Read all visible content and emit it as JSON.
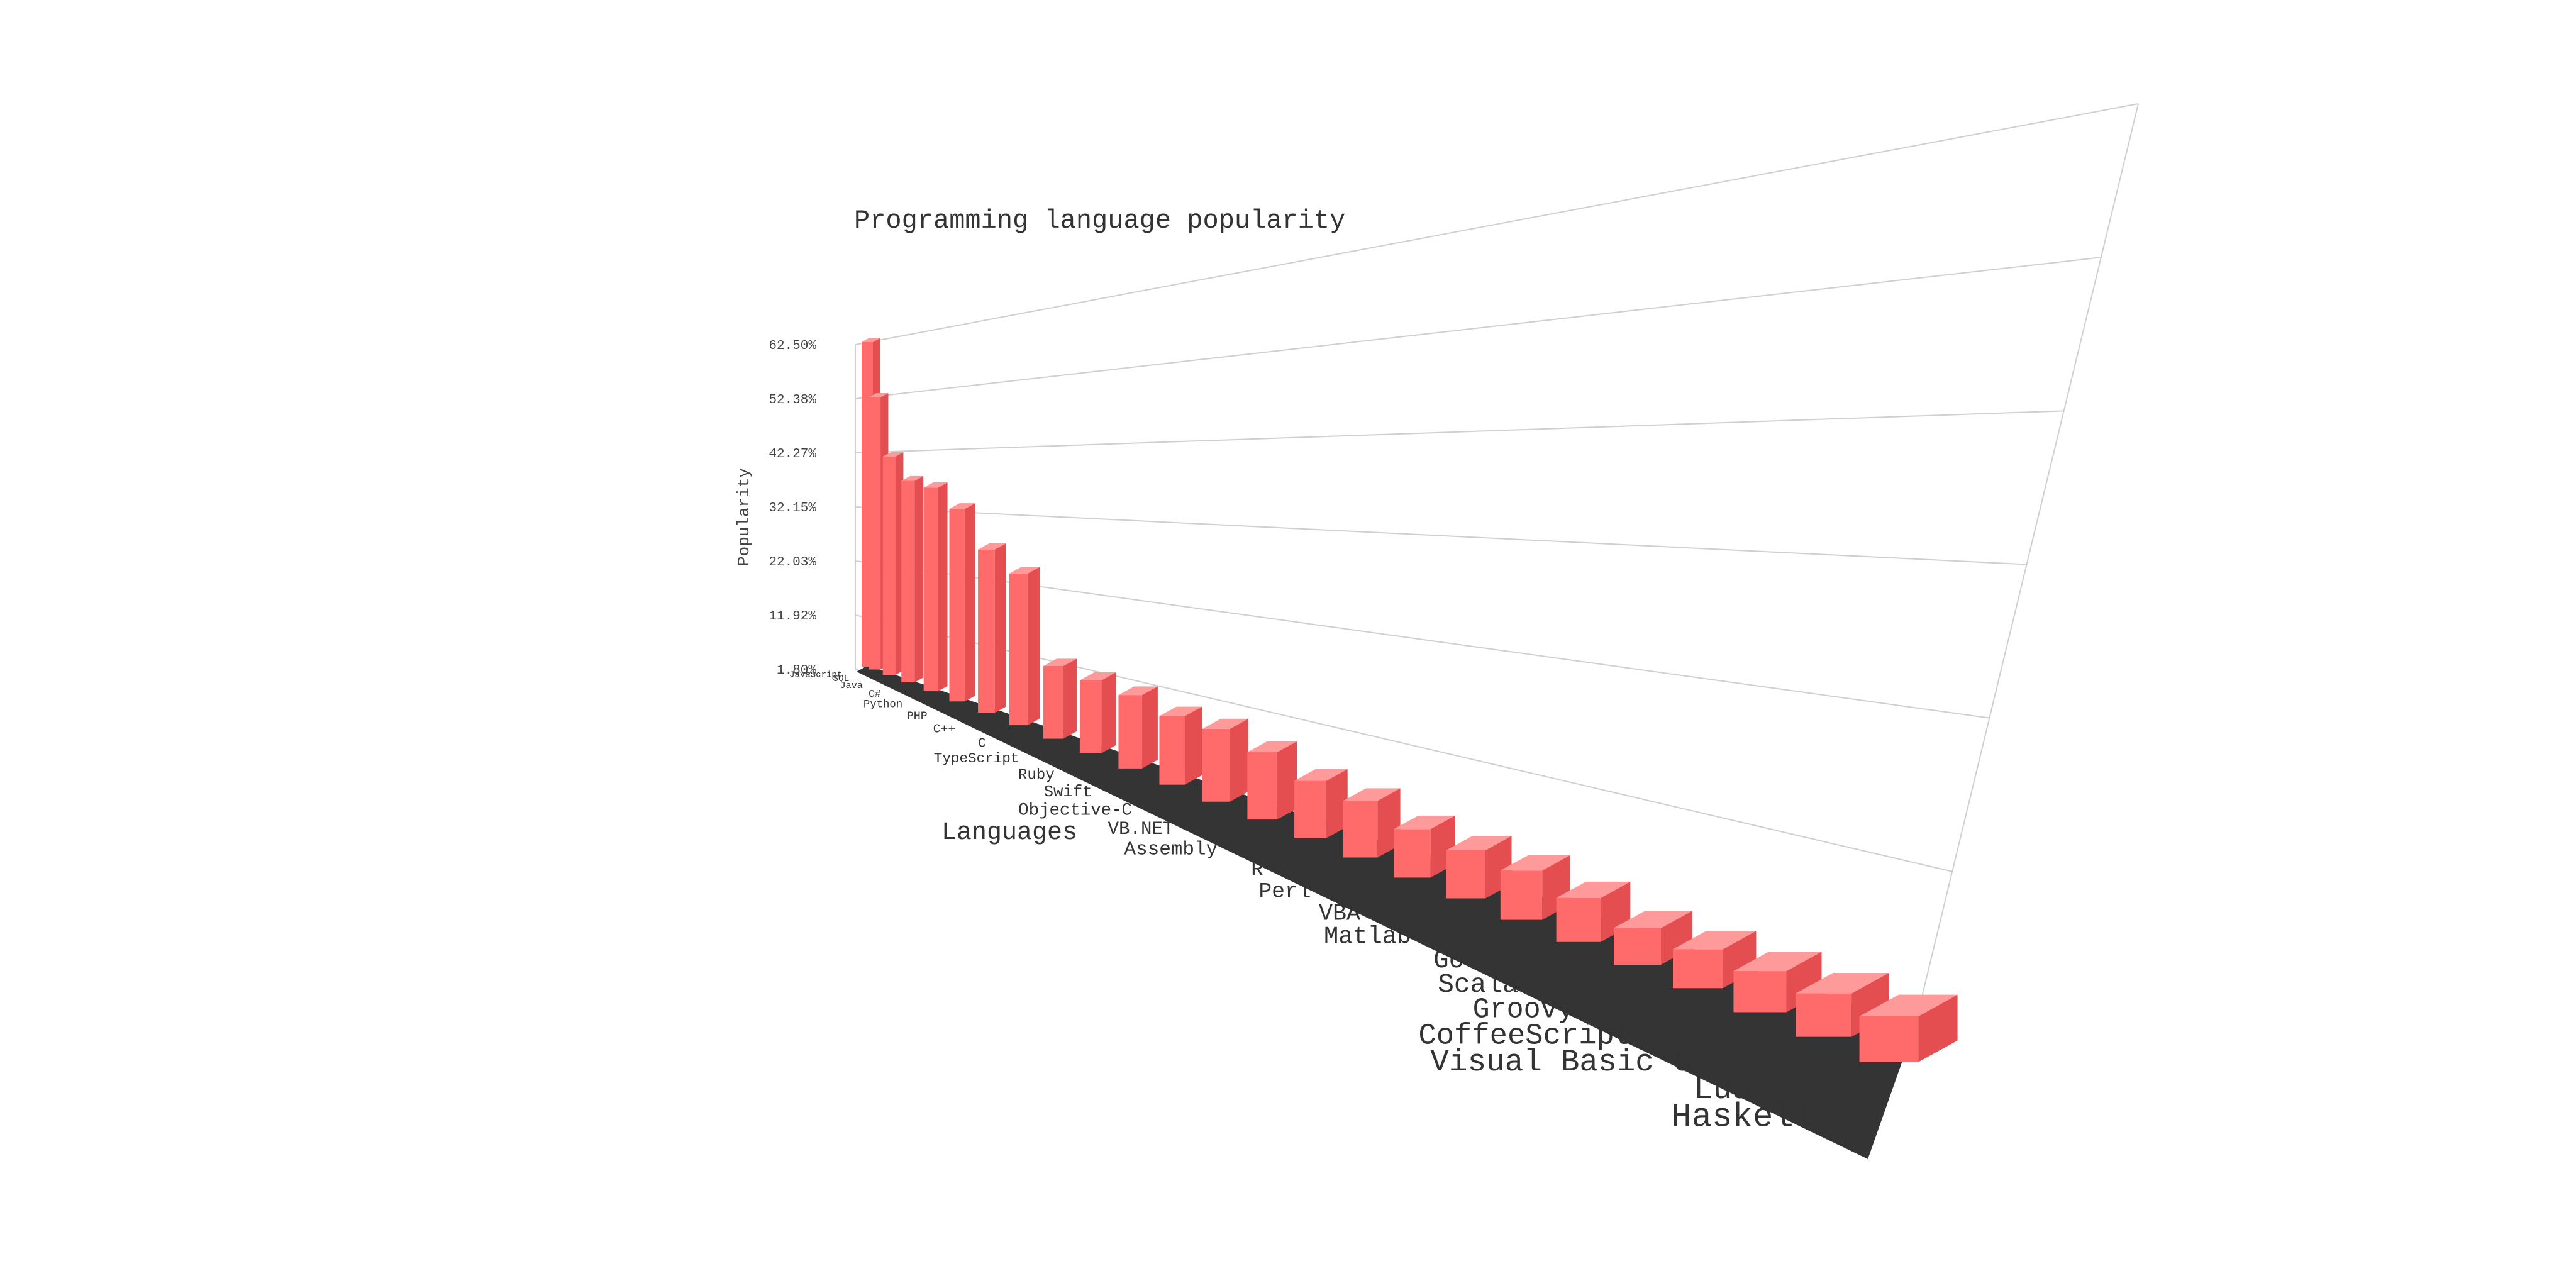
{
  "chart_data": {
    "type": "bar",
    "title": "Programming language popularity",
    "xlabel": "Languages",
    "ylabel": "Popularity",
    "ylim": [
      1.8,
      62.5
    ],
    "y_ticks": [
      "1.80%",
      "11.92%",
      "22.03%",
      "32.15%",
      "42.27%",
      "52.38%",
      "62.50%"
    ],
    "grid": true,
    "categories": [
      "JavaScript",
      "SQL",
      "Java",
      "C#",
      "Python",
      "PHP",
      "C++",
      "C",
      "TypeScript",
      "Ruby",
      "Swift",
      "Objective-C",
      "VB.NET",
      "Assembly",
      "R",
      "Perl",
      "VBA",
      "Matlab",
      "Go",
      "Scala",
      "Groovy",
      "CoffeeScript",
      "Visual Basic 6",
      "Lua",
      "Haskell"
    ],
    "series": [
      {
        "values": [
          62.5,
          51.2,
          39.3,
          34.1,
          32.0,
          28.1,
          22.3,
          19.3,
          9.5,
          8.9,
          8.4,
          7.5,
          7.4,
          6.6,
          5.6,
          5.3,
          4.6,
          4.4,
          4.3,
          3.9,
          3.3,
          3.2,
          3.0,
          2.8,
          1.8
        ]
      }
    ],
    "colors": {
      "bar_front": "#ff6b6b",
      "bar_side": "#e54e50",
      "bar_top": "#ff9a9a",
      "floor": "#343434"
    }
  }
}
